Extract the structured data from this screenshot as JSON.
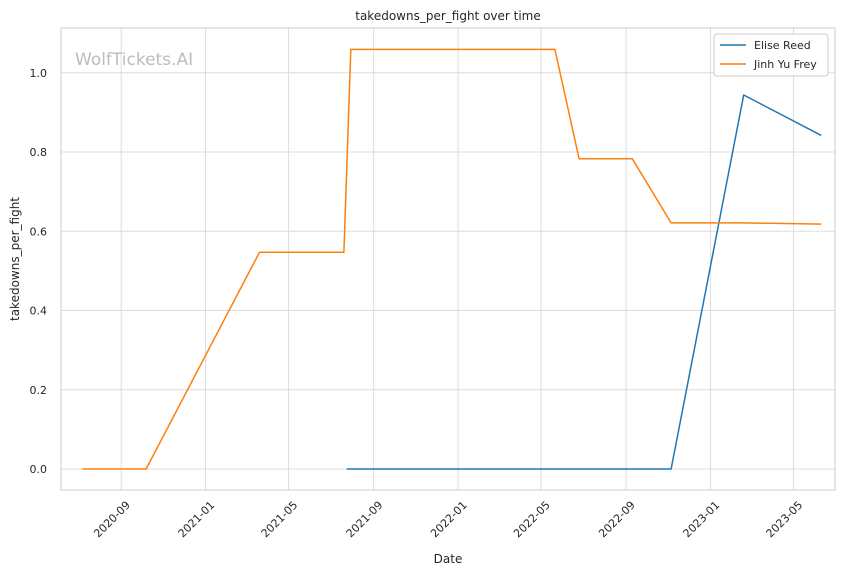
{
  "watermark": "WolfTickets.AI",
  "chart_data": {
    "type": "line",
    "title": "takedowns_per_fight over time",
    "xlabel": "Date",
    "ylabel": "takedowns_per_fight",
    "xlim": [
      "2020-06-06",
      "2023-06-30"
    ],
    "ylim": [
      -0.053,
      1.113
    ],
    "x_ticks": [
      "2020-09",
      "2021-01",
      "2021-05",
      "2021-09",
      "2022-01",
      "2022-05",
      "2022-09",
      "2023-01",
      "2023-05"
    ],
    "y_ticks": [
      "0.0",
      "0.2",
      "0.4",
      "0.6",
      "0.8",
      "1.0"
    ],
    "grid": true,
    "legend_position": "top-right",
    "series": [
      {
        "name": "Elise Reed",
        "color": "#1f77b4",
        "x": [
          "2021-07-24",
          "2022-11-05",
          "2023-02-18",
          "2023-06-10"
        ],
        "y": [
          0.0,
          0.0,
          0.944,
          0.842
        ]
      },
      {
        "name": "Jinh Yu Frey",
        "color": "#ff7f0e",
        "x": [
          "2020-07-07",
          "2020-10-07",
          "2021-03-20",
          "2021-07-20",
          "2021-07-30",
          "2022-05-21",
          "2022-06-25",
          "2022-09-10",
          "2022-11-05",
          "2023-02-18",
          "2023-06-10"
        ],
        "y": [
          0.0,
          0.0,
          0.547,
          0.547,
          1.059,
          1.059,
          0.783,
          0.783,
          0.621,
          0.621,
          0.618
        ]
      }
    ]
  }
}
